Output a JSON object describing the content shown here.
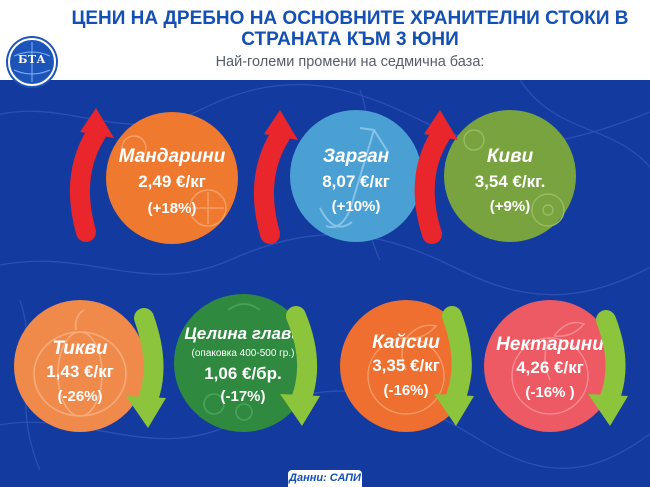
{
  "title": "ЦЕНИ НА ДРЕБНО НА ОСНОВНИТЕ ХРАНИТЕЛНИ СТОКИ В СТРАНАТА КЪМ 3 ЮНИ",
  "subtitle": "Най-големи промени на седмична база:",
  "logo_text": "БТА",
  "footer": "Данни: САПИ",
  "colors": {
    "background": "#133a9e",
    "up_arrow": "#e8262c",
    "down_arrow": "#8cc43c"
  },
  "items": [
    {
      "name": "Мандарини",
      "price": "2,49 €/кг",
      "change": "(+18%)",
      "direction": "up",
      "color": "#ef7a2f",
      "icon": "mandarin-icon"
    },
    {
      "name": "Зарган",
      "price": "8,07 €/кг",
      "change": "(+10%)",
      "direction": "up",
      "color": "#4aa0d3",
      "icon": "fish-icon"
    },
    {
      "name": "Киви",
      "price": "3,54 €/кг.",
      "change": "(+9%)",
      "direction": "up",
      "color": "#78a33f",
      "icon": "kiwi-icon"
    },
    {
      "name": "Тикви",
      "price": "1,43 €/кг",
      "change": "(-26%)",
      "direction": "down",
      "color": "#f08a4b",
      "icon": "pumpkin-icon"
    },
    {
      "name": "Целина глави",
      "note": "(опаковка 400-500 гр.)",
      "price": "1,06 €/бр.",
      "change": "(-17%)",
      "direction": "down",
      "color": "#2f8a3f",
      "icon": "celery-icon"
    },
    {
      "name": "Кайсии",
      "price": "3,35 €/кг",
      "change": "(-16%)",
      "direction": "down",
      "color": "#ee6f2f",
      "icon": "apricot-icon"
    },
    {
      "name": "Нектарини",
      "price": "4,26 €/кг",
      "change": "(-16% )",
      "direction": "down",
      "color": "#ee5a64",
      "icon": "nectarine-icon"
    }
  ]
}
